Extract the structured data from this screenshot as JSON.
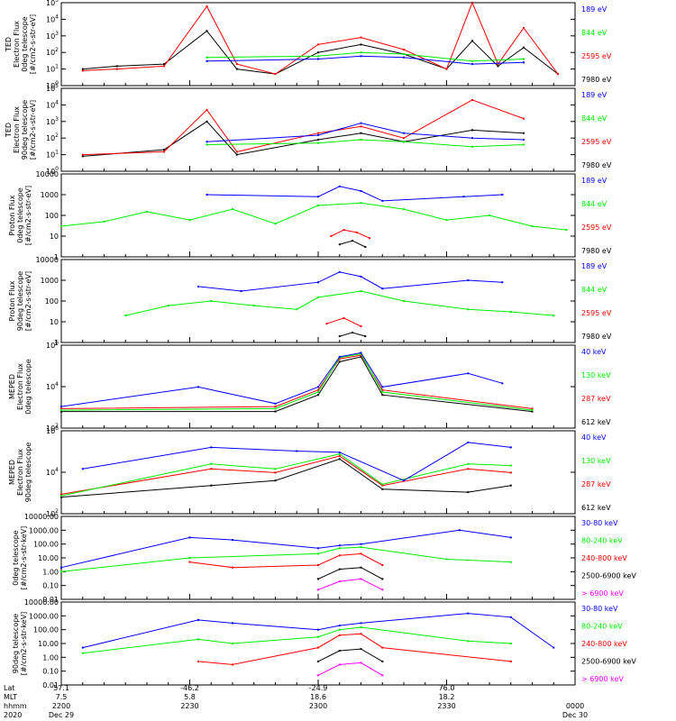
{
  "colors": {
    "black": "#000000",
    "red": "#ff0000",
    "green": "#00ee00",
    "blue": "#0000ff",
    "magenta": "#ff00ff"
  },
  "chart_data": [
    {
      "type": "line",
      "ylabel": [
        "TED",
        "Electron Flux",
        "0deg telescope",
        "[#/cm2-s-str-eV]"
      ],
      "yscale": "log",
      "yticks": [
        "10^0",
        "10^1",
        "10^2",
        "10^3",
        "10^4",
        "10^5"
      ],
      "ylim": [
        1,
        100000
      ],
      "series": [
        {
          "name": "7980 eV",
          "color": "black",
          "x": [
            2205,
            2213,
            2224,
            2234,
            2241,
            2250,
            2300,
            2310,
            2320,
            2330,
            2336,
            2342,
            2348,
            2356
          ],
          "values": [
            10,
            15,
            20,
            2000,
            10,
            5,
            100,
            300,
            80,
            10,
            500,
            15,
            200,
            5
          ]
        },
        {
          "name": "2595 eV",
          "color": "red",
          "x": [
            2205,
            2213,
            2224,
            2234,
            2241,
            2250,
            2300,
            2310,
            2320,
            2330,
            2336,
            2342,
            2348,
            2356
          ],
          "values": [
            8,
            10,
            15,
            60000,
            20,
            5,
            300,
            800,
            150,
            10,
            100000,
            20,
            3000,
            5
          ]
        },
        {
          "name": "844 eV",
          "color": "green",
          "x": [
            2234,
            2300,
            2310,
            2320,
            2336,
            2348
          ],
          "values": [
            50,
            60,
            100,
            80,
            30,
            40
          ]
        },
        {
          "name": "189 eV",
          "color": "blue",
          "x": [
            2234,
            2300,
            2310,
            2320,
            2336,
            2348
          ],
          "values": [
            30,
            40,
            60,
            50,
            20,
            25
          ]
        }
      ]
    },
    {
      "type": "line",
      "ylabel": [
        "TED",
        "Electron Flux",
        "90deg telescope",
        "[#/cm2-s-str-eV]"
      ],
      "yscale": "log",
      "yticks": [
        "10^0",
        "10^1",
        "10^2",
        "10^3",
        "10^4",
        "10^5"
      ],
      "ylim": [
        1,
        100000
      ],
      "series": [
        {
          "name": "7980 eV",
          "color": "black",
          "x": [
            2205,
            2224,
            2234,
            2241,
            2300,
            2310,
            2320,
            2336,
            2348
          ],
          "values": [
            8,
            20,
            1000,
            10,
            80,
            200,
            60,
            300,
            200
          ]
        },
        {
          "name": "2595 eV",
          "color": "red",
          "x": [
            2205,
            2224,
            2234,
            2241,
            2300,
            2310,
            2320,
            2336,
            2348
          ],
          "values": [
            10,
            15,
            5000,
            15,
            200,
            500,
            100,
            20000,
            1500
          ]
        },
        {
          "name": "844 eV",
          "color": "green",
          "x": [
            2234,
            2300,
            2310,
            2320,
            2336,
            2348
          ],
          "values": [
            40,
            50,
            80,
            60,
            30,
            40
          ]
        },
        {
          "name": "189 eV",
          "color": "blue",
          "x": [
            2234,
            2300,
            2310,
            2320,
            2336,
            2348
          ],
          "values": [
            60,
            150,
            800,
            200,
            100,
            80
          ]
        }
      ]
    },
    {
      "type": "line",
      "ylabel": [
        "Proton Flux",
        "0deg telescope",
        "[#/cm2-s-str-eV]"
      ],
      "yscale": "log",
      "yticks": [
        "1",
        "10",
        "100",
        "1000",
        "10000"
      ],
      "ylim": [
        1,
        10000
      ],
      "series": [
        {
          "name": "7980 eV",
          "color": "black",
          "x": [
            2305,
            2308,
            2311
          ],
          "values": [
            4,
            6,
            3
          ]
        },
        {
          "name": "2595 eV",
          "color": "red",
          "x": [
            2303,
            2306,
            2309,
            2312
          ],
          "values": [
            10,
            20,
            15,
            8
          ]
        },
        {
          "name": "844 eV",
          "color": "green",
          "x": [
            2200,
            2210,
            2220,
            2230,
            2240,
            2250,
            2300,
            2310,
            2320,
            2330,
            2340,
            2350,
            2358
          ],
          "values": [
            30,
            50,
            150,
            60,
            200,
            40,
            300,
            400,
            200,
            60,
            100,
            30,
            20
          ]
        },
        {
          "name": "189 eV",
          "color": "blue",
          "x": [
            2234,
            2300,
            2305,
            2310,
            2315,
            2334,
            2343
          ],
          "values": [
            1000,
            800,
            2500,
            1500,
            500,
            800,
            1000
          ]
        }
      ]
    },
    {
      "type": "line",
      "ylabel": [
        "Proton Flux",
        "90deg telescope",
        "[#/cm2-s-str-eV]"
      ],
      "yscale": "log",
      "yticks": [
        "1",
        "10",
        "100",
        "1000",
        "10000"
      ],
      "ylim": [
        1,
        10000
      ],
      "series": [
        {
          "name": "7980 eV",
          "color": "black",
          "x": [
            2305,
            2308,
            2311
          ],
          "values": [
            2,
            3,
            2
          ]
        },
        {
          "name": "2595 eV",
          "color": "red",
          "x": [
            2302,
            2306,
            2310
          ],
          "values": [
            8,
            15,
            6
          ]
        },
        {
          "name": "844 eV",
          "color": "green",
          "x": [
            2215,
            2225,
            2235,
            2245,
            2255,
            2300,
            2310,
            2320,
            2335,
            2345,
            2355
          ],
          "values": [
            20,
            60,
            100,
            60,
            40,
            150,
            300,
            100,
            40,
            30,
            20
          ]
        },
        {
          "name": "189 eV",
          "color": "blue",
          "x": [
            2232,
            2242,
            2300,
            2305,
            2310,
            2315,
            2335,
            2343
          ],
          "values": [
            500,
            300,
            800,
            2500,
            1500,
            400,
            1000,
            800
          ]
        }
      ]
    },
    {
      "type": "line",
      "ylabel": [
        "MEPED",
        "Electron Flux",
        "0deg telescope"
      ],
      "yscale": "log",
      "yticks": [
        "10^2",
        "10^4",
        "10^6"
      ],
      "ylim": [
        10,
        1000000
      ],
      "series": [
        {
          "name": "612 keV",
          "color": "black",
          "x": [
            2200,
            2250,
            2300,
            2305,
            2310,
            2315,
            2350
          ],
          "values": [
            100,
            100,
            1000,
            100000,
            200000,
            1000,
            100
          ]
        },
        {
          "name": "287 keV",
          "color": "red",
          "x": [
            2200,
            2250,
            2300,
            2305,
            2310,
            2315,
            2350
          ],
          "values": [
            150,
            200,
            2000,
            150000,
            250000,
            2000,
            150
          ]
        },
        {
          "name": "130 keV",
          "color": "green",
          "x": [
            2200,
            2250,
            2300,
            2305,
            2310,
            2315,
            2350
          ],
          "values": [
            120,
            150,
            1500,
            180000,
            300000,
            1500,
            120
          ]
        },
        {
          "name": "40 keV",
          "color": "blue",
          "x": [
            2200,
            2232,
            2250,
            2300,
            2305,
            2310,
            2315,
            2335,
            2343
          ],
          "values": [
            200,
            3000,
            300,
            3000,
            200000,
            350000,
            3000,
            20000,
            5000
          ]
        }
      ]
    },
    {
      "type": "line",
      "ylabel": [
        "MEPED",
        "Electron Flux",
        "90deg telescope"
      ],
      "yscale": "log",
      "yticks": [
        "10^2",
        "10^4",
        "10^6"
      ],
      "ylim": [
        10,
        1000000
      ],
      "series": [
        {
          "name": "612 keV",
          "color": "black",
          "x": [
            2200,
            2235,
            2250,
            2305,
            2315,
            2335,
            2345
          ],
          "values": [
            100,
            500,
            1000,
            20000,
            300,
            200,
            500
          ]
        },
        {
          "name": "287 keV",
          "color": "red",
          "x": [
            2200,
            2235,
            2250,
            2305,
            2315,
            2335,
            2345
          ],
          "values": [
            150,
            5000,
            3000,
            30000,
            500,
            5000,
            3000
          ]
        },
        {
          "name": "130 keV",
          "color": "green",
          "x": [
            2200,
            2235,
            2250,
            2305,
            2315,
            2335,
            2345
          ],
          "values": [
            120,
            10000,
            5000,
            40000,
            600,
            10000,
            8000
          ]
        },
        {
          "name": "40 keV",
          "color": "blue",
          "x": [
            2205,
            2235,
            2255,
            2305,
            2320,
            2335,
            2345
          ],
          "values": [
            5000,
            100000,
            60000,
            50000,
            1000,
            200000,
            100000
          ]
        }
      ]
    },
    {
      "type": "line",
      "ylabel": [
        "0deg telescope",
        "[#/cm2-s-str-keV]"
      ],
      "yscale": "log",
      "yticks": [
        "0.01",
        "0.10",
        "1.00",
        "10.00",
        "100.00",
        "1000.00",
        "10000.00"
      ],
      "ylim": [
        0.01,
        10000
      ],
      "series": [
        {
          "name": "> 6900 keV",
          "color": "magenta",
          "x": [
            2300,
            2305,
            2310,
            2315
          ],
          "values": [
            0.05,
            0.2,
            0.3,
            0.05
          ]
        },
        {
          "name": "2500-6900 keV",
          "color": "black",
          "x": [
            2300,
            2305,
            2310,
            2315
          ],
          "values": [
            0.3,
            1.5,
            2.0,
            0.3
          ]
        },
        {
          "name": "240-800 keV",
          "color": "red",
          "x": [
            2230,
            2240,
            2300,
            2305,
            2310,
            2315
          ],
          "values": [
            5,
            2,
            3,
            15,
            20,
            3
          ]
        },
        {
          "name": "80-240 keV",
          "color": "green",
          "x": [
            2200,
            2230,
            2300,
            2305,
            2310,
            2330,
            2345
          ],
          "values": [
            1,
            10,
            20,
            50,
            60,
            8,
            5
          ]
        },
        {
          "name": "30-80 keV",
          "color": "blue",
          "x": [
            2200,
            2230,
            2240,
            2300,
            2305,
            2310,
            2333,
            2345
          ],
          "values": [
            2,
            300,
            200,
            50,
            80,
            100,
            1000,
            300
          ]
        }
      ]
    },
    {
      "type": "line",
      "ylabel": [
        "90deg telescope",
        "[#/cm2-s-str-keV]"
      ],
      "yscale": "log",
      "yticks": [
        "0.01",
        "0.10",
        "1.00",
        "10.00",
        "100.00",
        "1000.00",
        "10000.00"
      ],
      "ylim": [
        0.01,
        10000
      ],
      "series": [
        {
          "name": "> 6900 keV",
          "color": "magenta",
          "x": [
            2300,
            2305,
            2310,
            2315
          ],
          "values": [
            0.05,
            0.3,
            0.4,
            0.05
          ]
        },
        {
          "name": "2500-6900 keV",
          "color": "black",
          "x": [
            2300,
            2305,
            2310,
            2315
          ],
          "values": [
            0.5,
            3,
            4,
            0.5
          ]
        },
        {
          "name": "240-800 keV",
          "color": "red",
          "x": [
            2232,
            2240,
            2300,
            2305,
            2310,
            2315,
            2345
          ],
          "values": [
            0.5,
            0.3,
            5,
            40,
            50,
            5,
            0.5
          ]
        },
        {
          "name": "80-240 keV",
          "color": "green",
          "x": [
            2205,
            2232,
            2240,
            2300,
            2305,
            2310,
            2335,
            2345
          ],
          "values": [
            2,
            20,
            10,
            30,
            100,
            150,
            15,
            10
          ]
        },
        {
          "name": "30-80 keV",
          "color": "blue",
          "x": [
            2205,
            2232,
            2240,
            2300,
            2305,
            2310,
            2335,
            2345,
            2355
          ],
          "values": [
            5,
            500,
            300,
            100,
            200,
            300,
            1500,
            800,
            5
          ]
        }
      ]
    }
  ],
  "xaxis": {
    "row_labels": [
      "Lat",
      "MLT",
      "hhmm",
      "2020"
    ],
    "ticks": [
      {
        "lat": "57.1",
        "mlt": "7.5",
        "hhmm": "2200",
        "date": "Dec 29",
        "t": 0
      },
      {
        "lat": "-46.2",
        "mlt": "5.8",
        "hhmm": "2230",
        "date": "",
        "t": 30
      },
      {
        "lat": "-24.9",
        "mlt": "18.6",
        "hhmm": "2300",
        "date": "",
        "t": 60
      },
      {
        "lat": "76.0",
        "mlt": "18.2",
        "hhmm": "2330",
        "date": "",
        "t": 90
      },
      {
        "lat": "",
        "mlt": "",
        "hhmm": "0000",
        "date": "Dec 30",
        "t": 120
      }
    ]
  }
}
